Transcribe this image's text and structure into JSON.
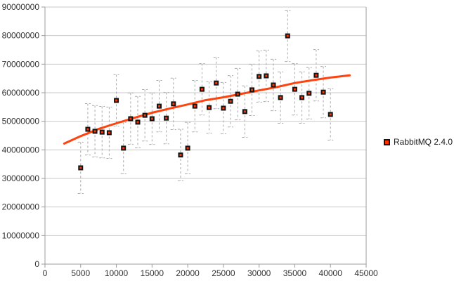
{
  "chart_data": {
    "type": "scatter",
    "title": "",
    "xlabel": "",
    "ylabel": "",
    "xlim": [
      0,
      45000
    ],
    "ylim": [
      0,
      90000000
    ],
    "x_ticks": [
      0,
      5000,
      10000,
      15000,
      20000,
      25000,
      30000,
      35000,
      40000,
      45000
    ],
    "y_ticks": [
      0,
      10000000,
      20000000,
      30000000,
      40000000,
      50000000,
      60000000,
      70000000,
      80000000,
      90000000
    ],
    "grid": "horizontal",
    "legend_position": "right",
    "series": [
      {
        "name": "RabbitMQ 2.4.0",
        "marker": "square",
        "marker_fill": "#ff3200",
        "marker_border": "#141414",
        "x": [
          5000,
          6000,
          7000,
          8000,
          9000,
          10000,
          11000,
          12000,
          13000,
          14000,
          15000,
          16000,
          17000,
          18000,
          19000,
          20000,
          21000,
          22000,
          23000,
          24000,
          25000,
          26000,
          27000,
          28000,
          29000,
          30000,
          31000,
          32000,
          33000,
          34000,
          35000,
          36000,
          37000,
          38000,
          39000,
          40000
        ],
        "y": [
          33700000,
          47200000,
          46500000,
          46200000,
          46000000,
          57300000,
          40600000,
          50900000,
          49700000,
          52100000,
          50900000,
          55300000,
          51100000,
          56100000,
          38200000,
          40600000,
          55300000,
          61200000,
          54800000,
          63400000,
          54600000,
          57000000,
          59500000,
          53400000,
          61000000,
          65700000,
          65900000,
          62700000,
          58300000,
          79900000,
          61200000,
          58300000,
          59800000,
          66100000,
          60200000,
          52400000
        ],
        "y_error": 9000000
      }
    ],
    "trend_line": {
      "name": "logarithmic-fit",
      "color": "#ff420e",
      "x": [
        2700,
        5000,
        7500,
        10000,
        12500,
        15000,
        17500,
        20000,
        22500,
        25000,
        27500,
        30000,
        32500,
        35000,
        37500,
        40000,
        42700
      ],
      "y": [
        42200000,
        44800000,
        47300000,
        49300000,
        51200000,
        53000000,
        54500000,
        55900000,
        57400000,
        58400000,
        59600000,
        60800000,
        62000000,
        63400000,
        64400000,
        65300000,
        66100000
      ]
    },
    "colors": {
      "background": "#ffffff",
      "grid": "#c9c9c9",
      "axis": "#9d9d9d",
      "error_bar": "#a8a8a8",
      "text": "#333333"
    }
  }
}
